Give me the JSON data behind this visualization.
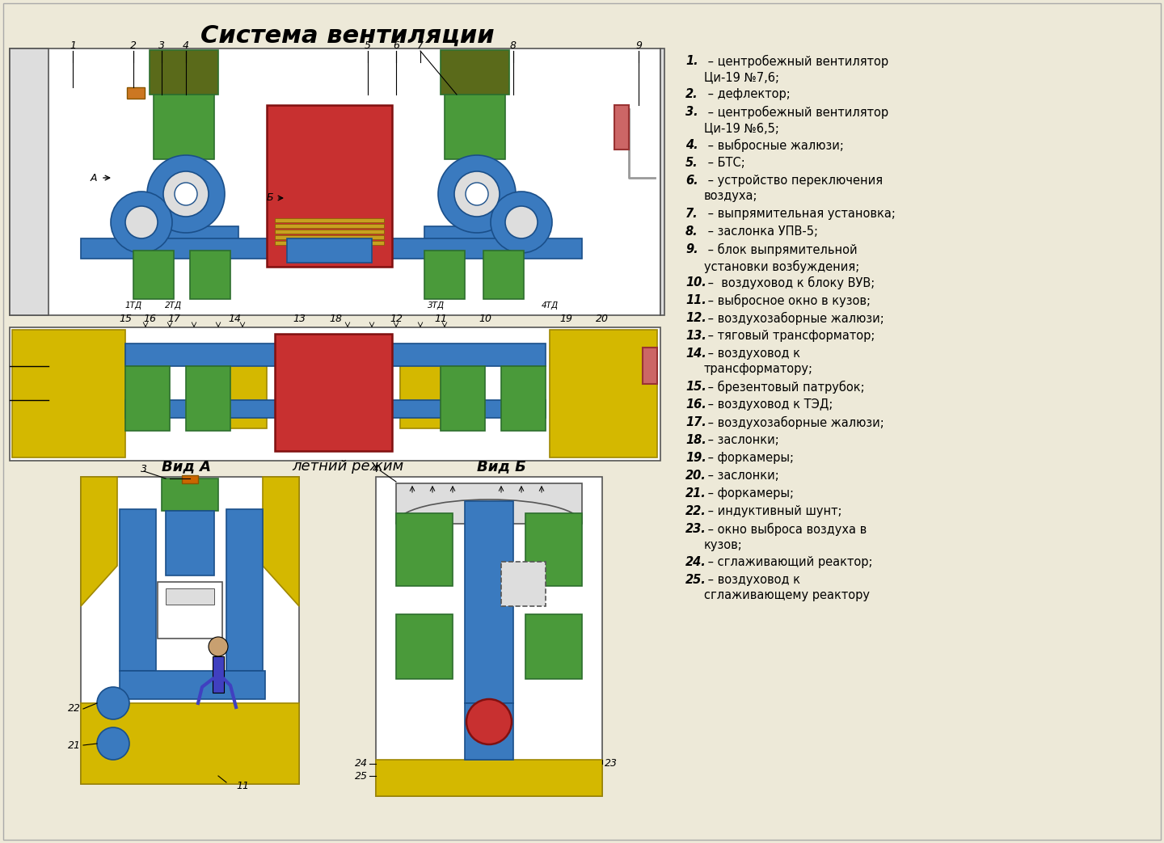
{
  "title": "Система вентиляции",
  "bg_color": "#ede9d8",
  "legend_items": [
    [
      "1.",
      " – центробежный вентилятор\nЦи-19 №7,6;"
    ],
    [
      "2.",
      " – дефлектор;"
    ],
    [
      "3.",
      " – центробежный вентилятор\nЦи-19 №6,5;"
    ],
    [
      "4.",
      " – выбросные жалюзи;"
    ],
    [
      "5.",
      " – БТС;"
    ],
    [
      "6.",
      " – устройство переключения\nвоздуха;"
    ],
    [
      "7.",
      " – выпрямительная установка;"
    ],
    [
      "8.",
      " – заслонка УПВ-5;"
    ],
    [
      "9.",
      " – блок выпрямительной\nустановки возбуждения;"
    ],
    [
      "10.",
      " –  воздуховод к блоку ВУВ;"
    ],
    [
      "11.",
      " – выбросное окно в кузов;"
    ],
    [
      "12.",
      " – воздухозаборные жалюзи;"
    ],
    [
      "13.",
      " – тяговый трансформатор;"
    ],
    [
      "14.",
      " – воздуховод к\nтрансформатору;"
    ],
    [
      "15.",
      " – брезентовый патрубок;"
    ],
    [
      "16.",
      " – воздуховод к ТЭД;"
    ],
    [
      "17.",
      " – воздухозаборные жалюзи;"
    ],
    [
      "18.",
      " – заслонки;"
    ],
    [
      "19.",
      " – форкамеры;"
    ],
    [
      "20.",
      " – заслонки;"
    ],
    [
      "21.",
      " – форкамеры;"
    ],
    [
      "22.",
      " – индуктивный шунт;"
    ],
    [
      "23.",
      " – окно выброса воздуха в\nкузов;"
    ],
    [
      "24.",
      " – сглаживающий реактор;"
    ],
    [
      "25.",
      " – воздуховод к\nсглаживающему реактору"
    ]
  ]
}
